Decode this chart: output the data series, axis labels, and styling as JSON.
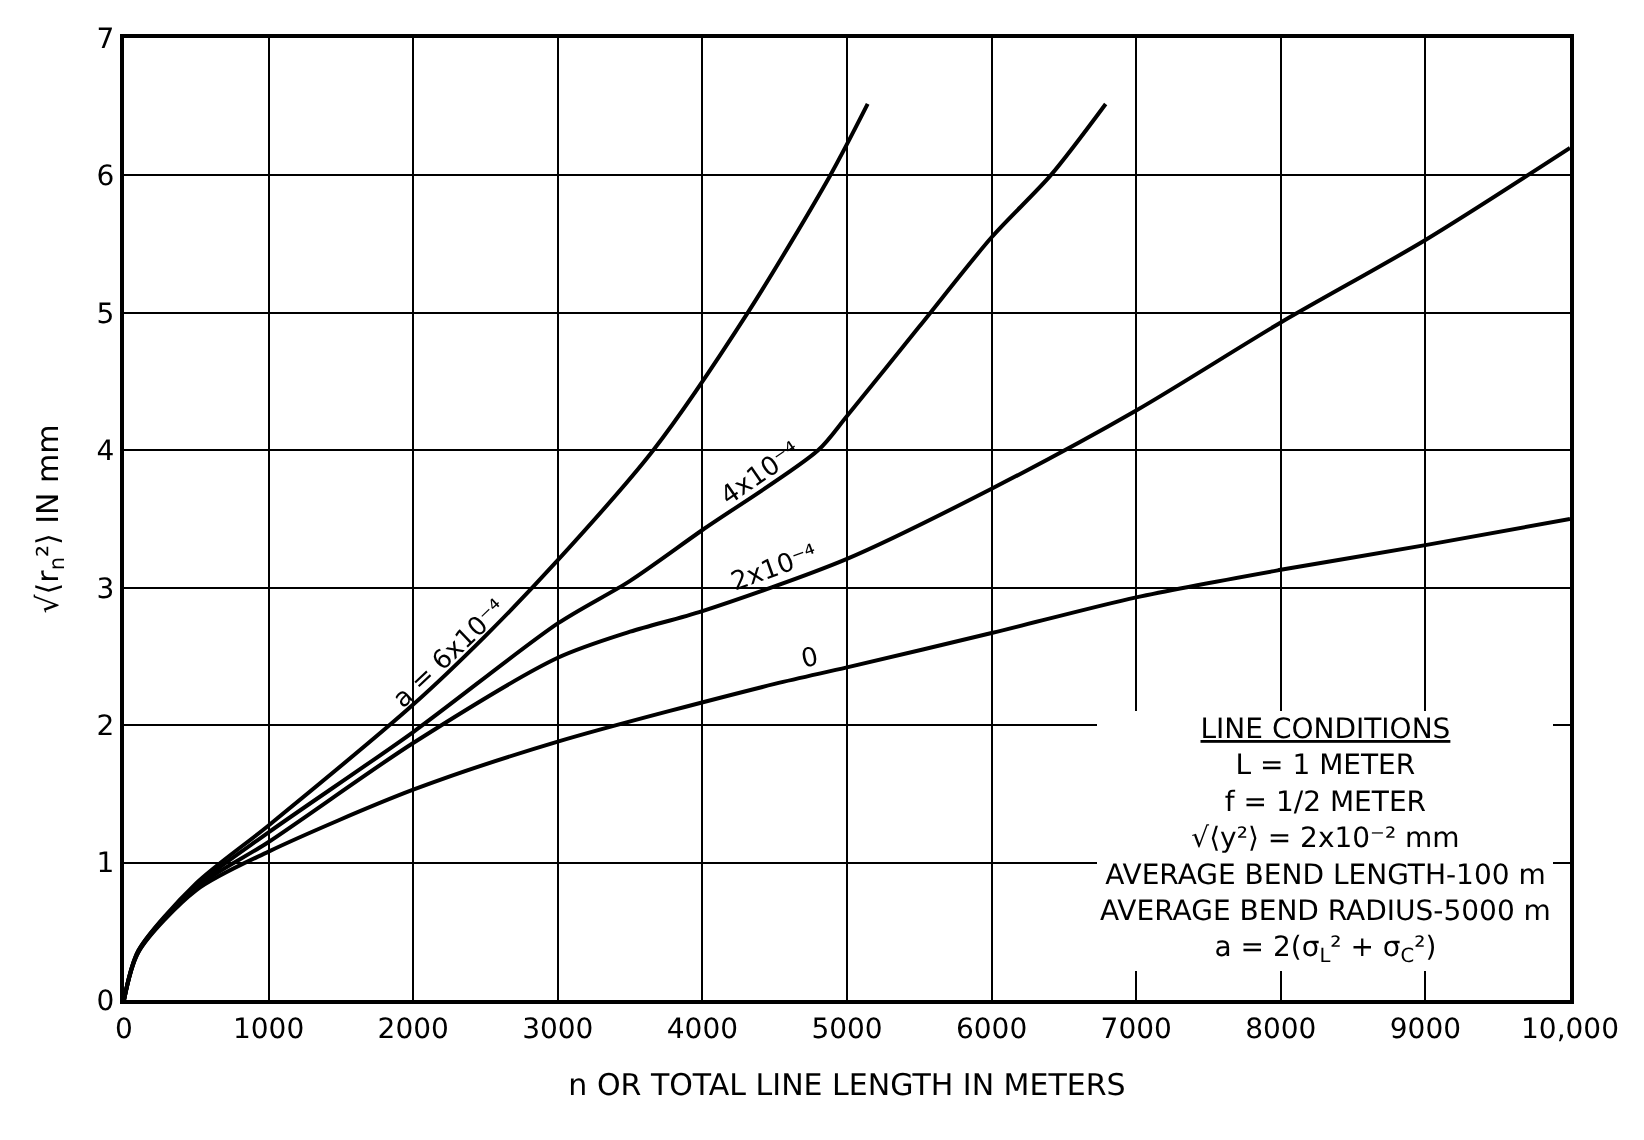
{
  "chart_data": {
    "type": "line",
    "xlabel": "n OR TOTAL LINE LENGTH IN METERS",
    "ylabel": "√⟨r$_{n}$²⟩ IN mm",
    "xlim": [
      0,
      10000
    ],
    "ylim": [
      0,
      7
    ],
    "xticks": [
      0,
      1000,
      2000,
      3000,
      4000,
      5000,
      6000,
      7000,
      8000,
      {
        "value": 10000,
        "label": "10,000"
      },
      9000
    ],
    "yticks": [
      0,
      1,
      2,
      3,
      4,
      5,
      6,
      7
    ],
    "grid": true,
    "legend": false,
    "line_style": "solid",
    "marker": "none",
    "series": [
      {
        "name": "a = 6x10⁻⁴",
        "color": "#000000",
        "x": [
          0,
          100,
          500,
          1000,
          2000,
          2500,
          3000,
          3660,
          4313,
          4884,
          5143
        ],
        "values": [
          0,
          0.36,
          0.85,
          1.27,
          2.15,
          2.65,
          3.2,
          4.0,
          5.0,
          6.0,
          6.52
        ]
      },
      {
        "name": "4x10⁻⁴",
        "color": "#000000",
        "x": [
          0,
          100,
          500,
          1000,
          2000,
          3000,
          3500,
          4000,
          4800,
          5000,
          5500,
          6000,
          6408,
          6789
        ],
        "values": [
          0,
          0.36,
          0.83,
          1.22,
          1.95,
          2.74,
          3.05,
          3.42,
          4.0,
          4.25,
          4.9,
          5.55,
          6.0,
          6.52
        ]
      },
      {
        "name": "2x10⁻⁴",
        "color": "#000000",
        "x": [
          0,
          100,
          500,
          1000,
          2000,
          3000,
          3500,
          4000,
          5000,
          6000,
          7000,
          8000,
          9000,
          10000
        ],
        "values": [
          0,
          0.35,
          0.82,
          1.15,
          1.87,
          2.49,
          2.68,
          2.83,
          3.21,
          3.72,
          4.29,
          4.93,
          5.53,
          6.2
        ]
      },
      {
        "name": "0",
        "color": "#000000",
        "x": [
          0,
          100,
          500,
          1000,
          2000,
          3000,
          4500,
          5000,
          6000,
          7000,
          8000,
          9000,
          10000
        ],
        "values": [
          0,
          0.35,
          0.8,
          1.08,
          1.53,
          1.88,
          2.3,
          2.42,
          2.67,
          2.93,
          3.13,
          3.31,
          3.5
        ]
      }
    ],
    "annotations": [
      "LINE CONDITIONS",
      "L = 1 METER",
      "f = 1/2 METER",
      "√⟨y²⟩ = 2x10⁻² mm",
      "AVERAGE BEND LENGTH-100 m",
      "AVERAGE BEND RADIUS-5000 m",
      "a = 2(σ$_{L}$² + σ$_{C}$²)"
    ]
  }
}
